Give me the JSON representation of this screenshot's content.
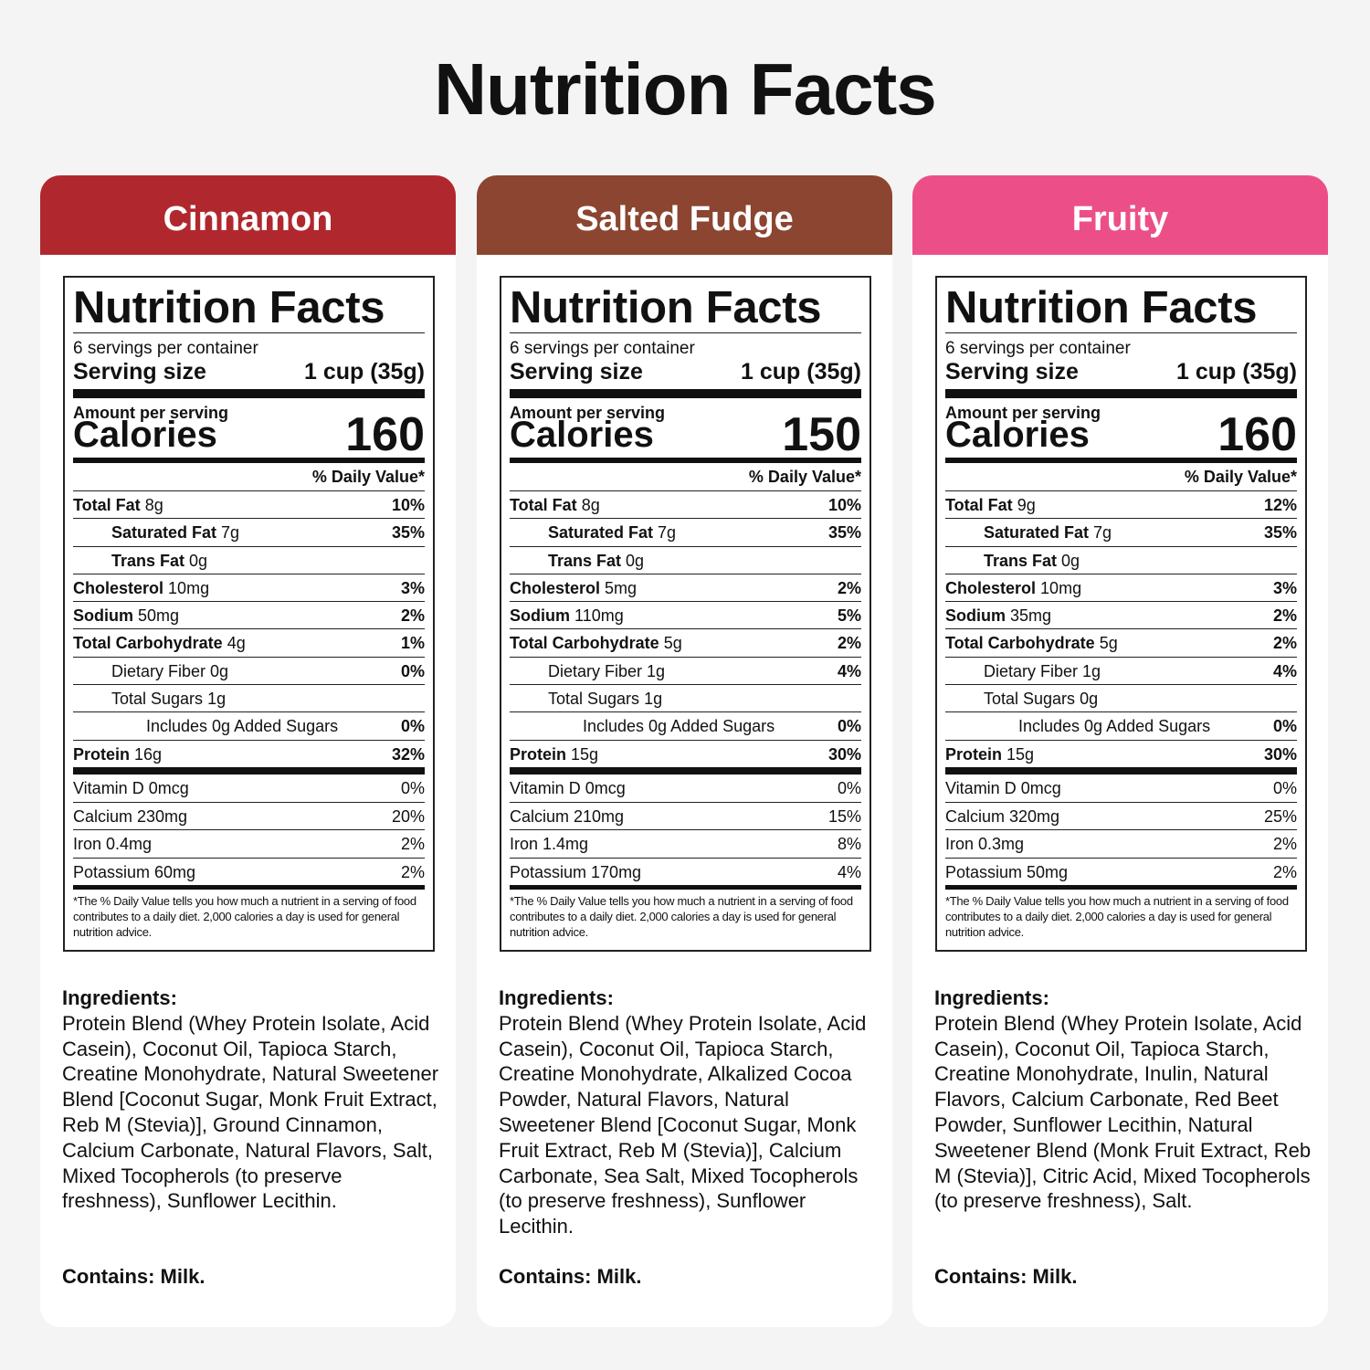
{
  "title": "Nutrition Facts",
  "panels": [
    {
      "flavor": "Cinnamon",
      "label": {
        "title": "Nutrition Facts",
        "servings": "6 servings per container",
        "serving_size_label": "Serving size",
        "serving_size": "1 cup (35g)",
        "amount": "Amount per serving",
        "calories_label": "Calories",
        "calories": "160",
        "dv_header": "% Daily Value*",
        "rows": [
          {
            "label": "Total Fat",
            "amount": "8g",
            "dv": "10%"
          },
          {
            "label": "Saturated Fat",
            "amount": "7g",
            "dv": "35%"
          },
          {
            "label": "Trans Fat",
            "amount": "0g"
          },
          {
            "label": "Cholesterol",
            "amount": "10mg",
            "dv": "3%"
          },
          {
            "label": "Sodium",
            "amount": "50mg",
            "dv": "2%"
          },
          {
            "label": "Total Carbohydrate",
            "amount": "4g",
            "dv": "1%"
          },
          {
            "label": "Dietary Fiber",
            "amount": "0g",
            "dv": "0%"
          },
          {
            "label": "Total Sugars",
            "amount": "1g"
          },
          {
            "label": "Includes 0g Added Sugars",
            "dv": "0%"
          },
          {
            "label": "Protein",
            "amount": "16g",
            "dv": "32%"
          }
        ],
        "vitamins": [
          {
            "label": "Vitamin D 0mcg",
            "dv": "0%"
          },
          {
            "label": "Calcium 230mg",
            "dv": "20%"
          },
          {
            "label": "Iron 0.4mg",
            "dv": "2%"
          },
          {
            "label": "Potassium 60mg",
            "dv": "2%"
          }
        ],
        "footnote": "*The % Daily Value tells you how much a nutrient in a serving of food contributes to a daily diet. 2,000 calories a day is used for general nutrition advice."
      },
      "ingredients_heading": "Ingredients:",
      "ingredients": "Protein Blend (Whey Protein Isolate, Acid Casein), Coconut Oil, Tapioca Starch, Creatine Monohydrate, Natural Sweetener Blend [Coconut Sugar, Monk Fruit Extract, Reb M (Stevia)], Ground Cinnamon, Calcium Carbonate, Natural Flavors, Salt, Mixed Tocopherols (to preserve freshness), Sunflower Lecithin.",
      "contains": "Contains: Milk."
    },
    {
      "flavor": "Salted Fudge",
      "label": {
        "title": "Nutrition Facts",
        "servings": "6 servings per container",
        "serving_size_label": "Serving size",
        "serving_size": "1 cup (35g)",
        "amount": "Amount per serving",
        "calories_label": "Calories",
        "calories": "150",
        "dv_header": "% Daily Value*",
        "rows": [
          {
            "label": "Total Fat",
            "amount": "8g",
            "dv": "10%"
          },
          {
            "label": "Saturated Fat",
            "amount": "7g",
            "dv": "35%"
          },
          {
            "label": "Trans Fat",
            "amount": "0g"
          },
          {
            "label": "Cholesterol",
            "amount": "5mg",
            "dv": "2%"
          },
          {
            "label": "Sodium",
            "amount": "110mg",
            "dv": "5%"
          },
          {
            "label": "Total Carbohydrate",
            "amount": "5g",
            "dv": "2%"
          },
          {
            "label": "Dietary Fiber",
            "amount": "1g",
            "dv": "4%"
          },
          {
            "label": "Total Sugars",
            "amount": "1g"
          },
          {
            "label": "Includes 0g Added Sugars",
            "dv": "0%"
          },
          {
            "label": "Protein",
            "amount": "15g",
            "dv": "30%"
          }
        ],
        "vitamins": [
          {
            "label": "Vitamin D 0mcg",
            "dv": "0%"
          },
          {
            "label": "Calcium 210mg",
            "dv": "15%"
          },
          {
            "label": "Iron 1.4mg",
            "dv": "8%"
          },
          {
            "label": "Potassium 170mg",
            "dv": "4%"
          }
        ],
        "footnote": "*The % Daily Value tells you how much a nutrient in a serving of food contributes to a daily diet. 2,000 calories a day is used for general nutrition advice."
      },
      "ingredients_heading": "Ingredients:",
      "ingredients": "Protein Blend (Whey Protein Isolate, Acid Casein), Coconut Oil, Tapioca Starch, Creatine Monohydrate, Alkalized Cocoa Powder, Natural Flavors, Natural Sweetener Blend [Coconut Sugar, Monk Fruit Extract, Reb M (Stevia)], Calcium Carbonate, Sea Salt, Mixed Tocopherols (to preserve freshness), Sunflower Lecithin.",
      "contains": "Contains: Milk."
    },
    {
      "flavor": "Fruity",
      "label": {
        "title": "Nutrition Facts",
        "servings": "6 servings per container",
        "serving_size_label": "Serving size",
        "serving_size": "1 cup (35g)",
        "amount": "Amount per serving",
        "calories_label": "Calories",
        "calories": "160",
        "dv_header": "% Daily Value*",
        "rows": [
          {
            "label": "Total Fat",
            "amount": "9g",
            "dv": "12%"
          },
          {
            "label": "Saturated Fat",
            "amount": "7g",
            "dv": "35%"
          },
          {
            "label": "Trans Fat",
            "amount": "0g"
          },
          {
            "label": "Cholesterol",
            "amount": "10mg",
            "dv": "3%"
          },
          {
            "label": "Sodium",
            "amount": "35mg",
            "dv": "2%"
          },
          {
            "label": "Total Carbohydrate",
            "amount": "5g",
            "dv": "2%"
          },
          {
            "label": "Dietary Fiber",
            "amount": "1g",
            "dv": "4%"
          },
          {
            "label": "Total Sugars",
            "amount": "0g"
          },
          {
            "label": "Includes 0g Added Sugars",
            "dv": "0%"
          },
          {
            "label": "Protein",
            "amount": "15g",
            "dv": "30%"
          }
        ],
        "vitamins": [
          {
            "label": "Vitamin D 0mcg",
            "dv": "0%"
          },
          {
            "label": "Calcium 320mg",
            "dv": "25%"
          },
          {
            "label": "Iron 0.3mg",
            "dv": "2%"
          },
          {
            "label": "Potassium 50mg",
            "dv": "2%"
          }
        ],
        "footnote": "*The % Daily Value tells you how much a nutrient in a serving of food contributes to a daily diet. 2,000 calories a day is used for general nutrition advice."
      },
      "ingredients_heading": "Ingredients:",
      "ingredients": "Protein Blend (Whey Protein Isolate, Acid Casein), Coconut Oil, Tapioca Starch, Creatine Monohydrate, Inulin, Natural Flavors, Calcium Carbonate, Red Beet Powder, Sunflower Lecithin, Natural Sweetener Blend (Monk Fruit Extract, Reb M (Stevia)], Citric Acid, Mixed Tocopherols (to preserve freshness), Salt.",
      "contains": "Contains: Milk."
    }
  ]
}
